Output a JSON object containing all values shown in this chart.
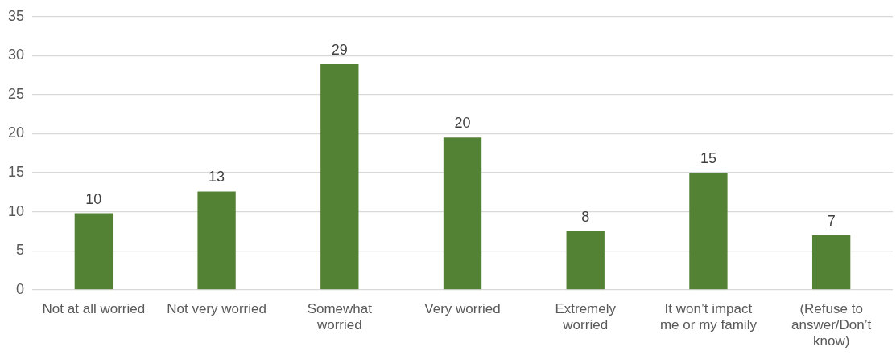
{
  "chart_data": {
    "type": "bar",
    "categories": [
      "Not at all worried",
      "Not very worried",
      "Somewhat worried",
      "Very worried",
      "Extremely worried",
      "It won’t impact me or my family",
      "(Refuse to answer/Don’t know)"
    ],
    "values": [
      9.8,
      12.6,
      28.9,
      19.5,
      7.5,
      15,
      7
    ],
    "value_labels": [
      "10",
      "13",
      "29",
      "20",
      "8",
      "15",
      "7"
    ],
    "color": "#548235",
    "ylim": [
      0,
      35
    ],
    "yticks": [
      0,
      5,
      10,
      15,
      20,
      25,
      30,
      35
    ],
    "grid": "y"
  }
}
